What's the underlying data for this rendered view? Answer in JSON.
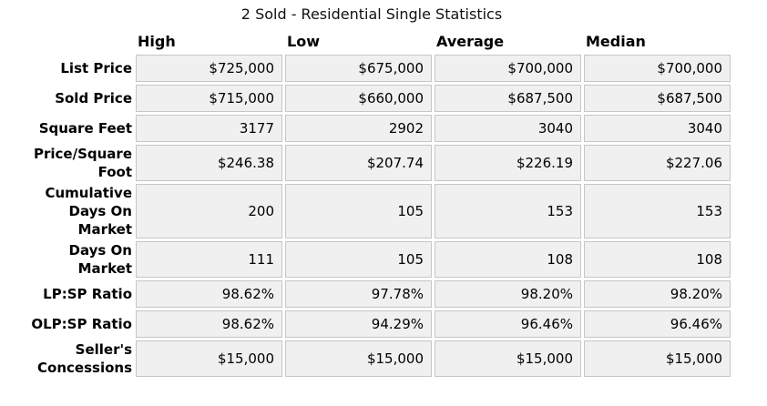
{
  "chart_data": {
    "type": "table",
    "title": "2 Sold - Residential Single Statistics",
    "columns": [
      "High",
      "Low",
      "Average",
      "Median"
    ],
    "rows": [
      {
        "label": "List Price",
        "values": [
          "$725,000",
          "$675,000",
          "$700,000",
          "$700,000"
        ],
        "numeric": [
          725000,
          675000,
          700000,
          700000
        ]
      },
      {
        "label": "Sold Price",
        "values": [
          "$715,000",
          "$660,000",
          "$687,500",
          "$687,500"
        ],
        "numeric": [
          715000,
          660000,
          687500,
          687500
        ]
      },
      {
        "label": "Square Feet",
        "values": [
          "3177",
          "2902",
          "3040",
          "3040"
        ],
        "numeric": [
          3177,
          2902,
          3040,
          3040
        ]
      },
      {
        "label": "Price/Square\nFoot",
        "values": [
          "$246.38",
          "$207.74",
          "$226.19",
          "$227.06"
        ],
        "numeric": [
          246.38,
          207.74,
          226.19,
          227.06
        ]
      },
      {
        "label": "Cumulative\nDays On\nMarket",
        "values": [
          "200",
          "105",
          "153",
          "153"
        ],
        "numeric": [
          200,
          105,
          153,
          153
        ]
      },
      {
        "label": "Days On\nMarket",
        "values": [
          "111",
          "105",
          "108",
          "108"
        ],
        "numeric": [
          111,
          105,
          108,
          108
        ]
      },
      {
        "label": "LP:SP Ratio",
        "values": [
          "98.62%",
          "97.78%",
          "98.20%",
          "98.20%"
        ],
        "numeric": [
          98.62,
          97.78,
          98.2,
          98.2
        ]
      },
      {
        "label": "OLP:SP Ratio",
        "values": [
          "98.62%",
          "94.29%",
          "96.46%",
          "96.46%"
        ],
        "numeric": [
          98.62,
          94.29,
          96.46,
          96.46
        ]
      },
      {
        "label": "Seller's\nConcessions",
        "values": [
          "$15,000",
          "$15,000",
          "$15,000",
          "$15,000"
        ],
        "numeric": [
          15000,
          15000,
          15000,
          15000
        ]
      }
    ],
    "layout": {
      "grid": false,
      "legend": "none",
      "cell_background": "#f0f0f0",
      "cell_border": "#c6c6c6",
      "text_color": "#000000"
    }
  }
}
